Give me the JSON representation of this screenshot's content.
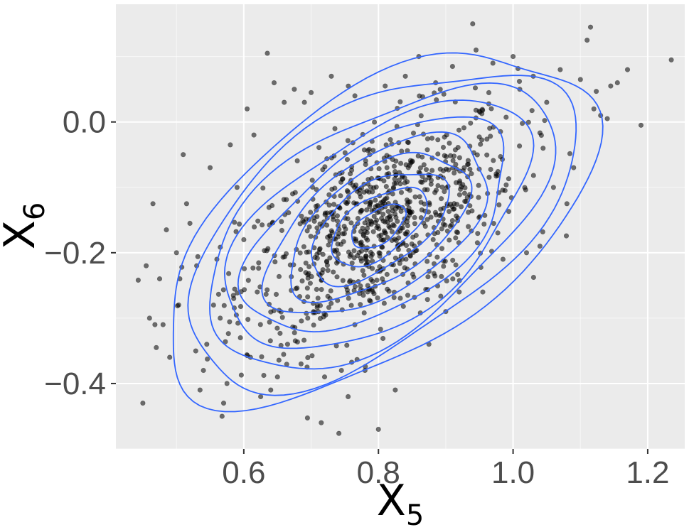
{
  "chart_data": {
    "type": "scatter",
    "title": "",
    "xlabel": {
      "base": "X",
      "sub": "5"
    },
    "ylabel": {
      "base": "X",
      "sub": "6"
    },
    "xlim": [
      0.41,
      1.255
    ],
    "ylim": [
      -0.5,
      0.18
    ],
    "x_ticks": [
      {
        "value": 0.6,
        "label": "0.6"
      },
      {
        "value": 0.8,
        "label": "0.8"
      },
      {
        "value": 1.0,
        "label": "1.0"
      },
      {
        "value": 1.2,
        "label": "1.2"
      }
    ],
    "y_ticks": [
      {
        "value": 0.0,
        "label": "0.0"
      },
      {
        "value": -0.2,
        "label": "−0.2"
      },
      {
        "value": -0.4,
        "label": "−0.4"
      }
    ],
    "grid": true,
    "point_color": "#000000",
    "point_opacity": 0.55,
    "contour_color": "#3366ff",
    "background_color": "#ebebeb",
    "grid_color": "#ffffff",
    "density": {
      "center": [
        0.8,
        -0.16
      ],
      "sd": [
        0.125,
        0.105
      ],
      "correlation": 0.55,
      "contour_levels": 10
    },
    "points": [
      [
        0.45,
        -0.43
      ],
      [
        0.455,
        -0.22
      ],
      [
        0.46,
        -0.3
      ],
      [
        0.465,
        -0.125
      ],
      [
        0.468,
        -0.31
      ],
      [
        0.47,
        -0.345
      ],
      [
        0.475,
        -0.24
      ],
      [
        0.48,
        -0.31
      ],
      [
        0.485,
        -0.165
      ],
      [
        0.49,
        -0.36
      ],
      [
        0.5,
        -0.2
      ],
      [
        0.505,
        -0.24
      ],
      [
        0.51,
        -0.05
      ],
      [
        0.515,
        -0.125
      ],
      [
        0.52,
        -0.155
      ],
      [
        0.53,
        -0.22
      ],
      [
        0.535,
        -0.41
      ],
      [
        0.54,
        -0.38
      ],
      [
        0.545,
        -0.34
      ],
      [
        0.55,
        -0.07
      ],
      [
        0.555,
        -0.28
      ],
      [
        0.56,
        -0.21
      ],
      [
        0.565,
        -0.3
      ],
      [
        0.57,
        -0.43
      ],
      [
        0.575,
        -0.4
      ],
      [
        0.58,
        -0.035
      ],
      [
        0.585,
        -0.27
      ],
      [
        0.59,
        -0.1
      ],
      [
        0.595,
        -0.33
      ],
      [
        0.6,
        -0.18
      ],
      [
        0.605,
        0.02
      ],
      [
        0.61,
        -0.36
      ],
      [
        0.615,
        -0.02
      ],
      [
        0.62,
        -0.26
      ],
      [
        0.625,
        -0.42
      ],
      [
        0.635,
        0.105
      ],
      [
        0.64,
        -0.41
      ],
      [
        0.645,
        0.06
      ],
      [
        0.65,
        -0.39
      ],
      [
        0.66,
        0.03
      ],
      [
        0.665,
        -0.34
      ],
      [
        0.675,
        0.05
      ],
      [
        0.685,
        -0.37
      ],
      [
        0.69,
        0.03
      ],
      [
        0.695,
        -0.3
      ],
      [
        0.7,
        0.045
      ],
      [
        0.715,
        -0.46
      ],
      [
        0.72,
        -0.39
      ],
      [
        0.73,
        0.07
      ],
      [
        0.745,
        -0.38
      ],
      [
        0.755,
        -0.42
      ],
      [
        0.765,
        0.04
      ],
      [
        0.78,
        -0.38
      ],
      [
        0.8,
        -0.47
      ],
      [
        0.81,
        0.055
      ],
      [
        0.825,
        -0.41
      ],
      [
        0.84,
        0.07
      ],
      [
        0.86,
        0.1
      ],
      [
        0.875,
        -0.34
      ],
      [
        0.885,
        0.06
      ],
      [
        0.9,
        -0.29
      ],
      [
        0.91,
        0.085
      ],
      [
        0.92,
        -0.26
      ],
      [
        0.94,
        0.15
      ],
      [
        0.945,
        0.11
      ],
      [
        0.955,
        -0.26
      ],
      [
        0.97,
        0.09
      ],
      [
        0.985,
        -0.21
      ],
      [
        1.0,
        0.1
      ],
      [
        1.01,
        0.05
      ],
      [
        1.02,
        -0.2
      ],
      [
        1.03,
        0.07
      ],
      [
        1.04,
        -0.19
      ],
      [
        1.05,
        0.03
      ],
      [
        1.06,
        -0.1
      ],
      [
        1.07,
        0.08
      ],
      [
        1.08,
        -0.125
      ],
      [
        1.09,
        -0.07
      ],
      [
        1.1,
        0.065
      ],
      [
        1.11,
        0.125
      ],
      [
        1.115,
        0.145
      ],
      [
        1.12,
        0.02
      ],
      [
        1.13,
        0.01
      ],
      [
        1.14,
        0.005
      ],
      [
        1.145,
        0.055
      ],
      [
        1.155,
        0.06
      ],
      [
        1.17,
        0.08
      ],
      [
        1.19,
        -0.005
      ],
      [
        1.235,
        0.095
      ]
    ]
  }
}
